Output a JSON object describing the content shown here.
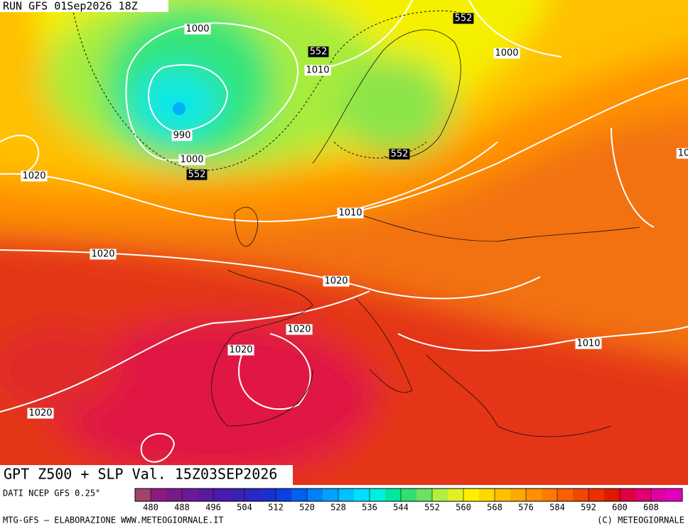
{
  "header": {
    "run": "RUN GFS 01Sep2026 18Z"
  },
  "title": "GPT Z500 + SLP Val. 15Z03SEP2026",
  "source": "DATI NCEP GFS 0.25°",
  "credits": "MTG-GFS — ELABORAZIONE WWW.METEOGIORNALE.IT",
  "copyright": "(C) METEOGIORNALE",
  "colorbar": {
    "range": [
      476,
      616
    ],
    "ticks": [
      480,
      488,
      496,
      504,
      512,
      520,
      528,
      536,
      544,
      552,
      560,
      568,
      576,
      584,
      592,
      600,
      608
    ],
    "colors": [
      "#a0446e",
      "#8c1a80",
      "#7a1a8a",
      "#6a1a96",
      "#5a1aa0",
      "#4a1aaa",
      "#3a20b4",
      "#2a28c0",
      "#1a30d0",
      "#0a40e0",
      "#0060f0",
      "#0080f8",
      "#00a0ff",
      "#00c0ff",
      "#00e0ff",
      "#00f0e0",
      "#00e8a0",
      "#30e070",
      "#70e060",
      "#b0f040",
      "#e0f020",
      "#fff000",
      "#ffd800",
      "#ffc000",
      "#ffa800",
      "#ff9000",
      "#ff7800",
      "#f86000",
      "#f04800",
      "#e83000",
      "#e01800",
      "#e00040",
      "#e00070",
      "#e000a0",
      "#e000c0"
    ]
  },
  "contour_labels": [
    1000,
    552,
    1010,
    552,
    1000,
    990,
    1000,
    552,
    1020,
    552,
    1010,
    1020,
    1020,
    1020,
    1020,
    1010,
    1020,
    10
  ]
}
